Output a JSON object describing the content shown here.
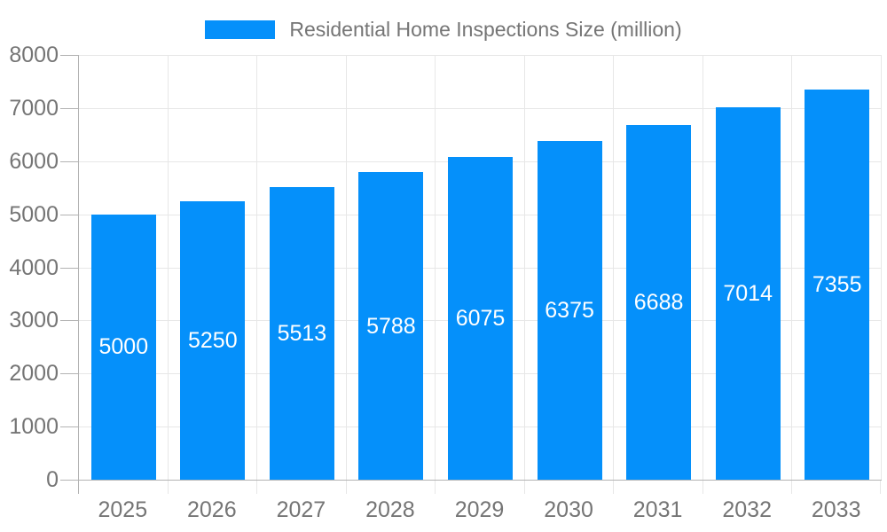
{
  "legend": {
    "label": "Residential Home Inspections Size (million)"
  },
  "chart_data": {
    "type": "bar",
    "title": "",
    "xlabel": "",
    "ylabel": "",
    "categories": [
      "2025",
      "2026",
      "2027",
      "2028",
      "2029",
      "2030",
      "2031",
      "2032",
      "2033"
    ],
    "series": [
      {
        "name": "Residential Home Inspections Size (million)",
        "values": [
          5000,
          5250,
          5513,
          5788,
          6075,
          6375,
          6688,
          7014,
          7355
        ]
      }
    ],
    "value_labels_shown": true,
    "ylim": [
      0,
      8000
    ],
    "ytick_step": 1000,
    "yticks": [
      0,
      1000,
      2000,
      3000,
      4000,
      5000,
      6000,
      7000,
      8000
    ],
    "grid": true,
    "legend_position": "top",
    "colors": {
      "bar": "#0590FA",
      "value_label": "#FFFFFF",
      "axis_text": "#757575",
      "grid_line": "#E7E7E7",
      "axis_line": "#B3B3B3",
      "background": "#FFFFFF"
    }
  }
}
